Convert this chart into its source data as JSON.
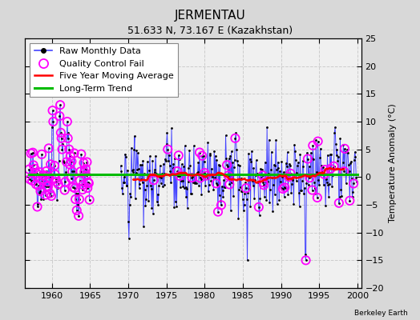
{
  "title": "JERMENTAU",
  "subtitle": "51.633 N, 73.167 E (Kazakhstan)",
  "ylabel": "Temperature Anomaly (°C)",
  "xlim": [
    1956.5,
    2000.5
  ],
  "ylim": [
    -20,
    25
  ],
  "yticks_right": [
    -20,
    -15,
    -10,
    -5,
    0,
    5,
    10,
    15,
    20,
    25
  ],
  "xticks": [
    1960,
    1965,
    1970,
    1975,
    1980,
    1985,
    1990,
    1995,
    2000
  ],
  "bg_color": "#d8d8d8",
  "plot_bg_color": "#f0f0f0",
  "grid_color": "#cccccc",
  "raw_line_color": "#4444ff",
  "raw_dot_color": "#000000",
  "qc_fail_color": "#ff00ff",
  "moving_avg_color": "#ff0000",
  "trend_color": "#00bb00",
  "watermark": "Berkeley Earth",
  "title_fontsize": 11,
  "subtitle_fontsize": 9,
  "legend_fontsize": 8
}
